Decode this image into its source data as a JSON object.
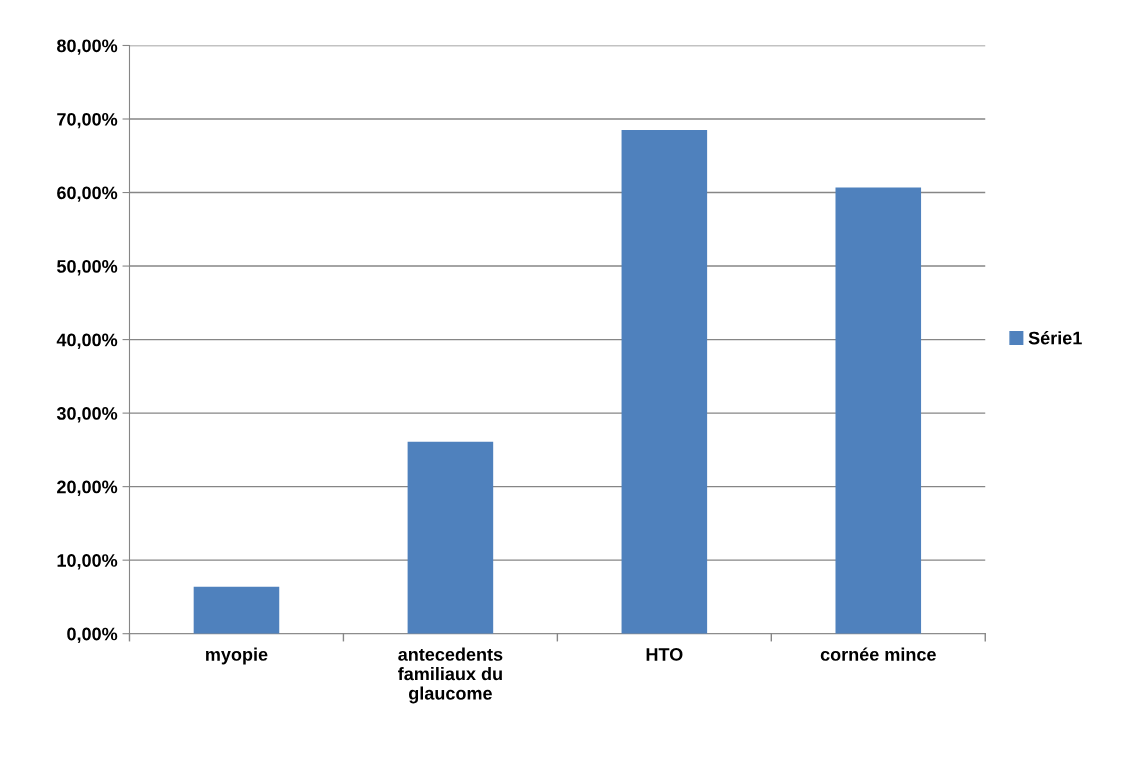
{
  "chart_data": {
    "type": "bar",
    "categories": [
      "myopie",
      "antecedents\nfamiliaux du\nglaucome",
      "HTO",
      "cornée mince"
    ],
    "series": [
      {
        "name": "Série1",
        "color": "#4f81bd",
        "values": [
          6.4,
          26.1,
          68.5,
          60.7
        ]
      }
    ],
    "ylim": [
      0,
      80
    ],
    "yticks": [
      {
        "value": 0,
        "label": "0,00%"
      },
      {
        "value": 10,
        "label": "10,00%"
      },
      {
        "value": 20,
        "label": "20,00%"
      },
      {
        "value": 30,
        "label": "30,00%"
      },
      {
        "value": 40,
        "label": "40,00%"
      },
      {
        "value": 50,
        "label": "50,00%"
      },
      {
        "value": 60,
        "label": "60,00%"
      },
      {
        "value": 70,
        "label": "70,00%"
      },
      {
        "value": 80,
        "label": "80,00%"
      }
    ],
    "grid": "y",
    "legend": "right"
  }
}
